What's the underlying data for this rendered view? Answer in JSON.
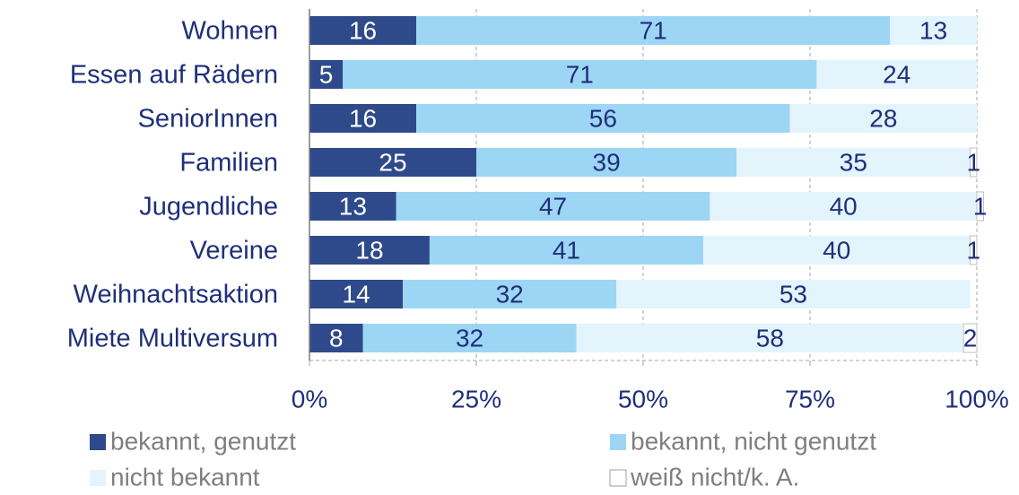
{
  "chart_data": {
    "type": "stacked_barh",
    "categories": [
      "Wohnen",
      "Essen auf Rädern",
      "SeniorInnen",
      "Familien",
      "Jugendliche",
      "Vereine",
      "Weihnachtsaktion",
      "Miete Multiversum"
    ],
    "series": [
      {
        "name": "bekannt, genutzt",
        "color": "#2e4a8a",
        "values": [
          16,
          5,
          16,
          25,
          13,
          18,
          14,
          8
        ]
      },
      {
        "name": "bekannt, nicht genutzt",
        "color": "#9dd6f5",
        "values": [
          71,
          71,
          56,
          39,
          47,
          41,
          32,
          32
        ]
      },
      {
        "name": "nicht bekannt",
        "color": "#e3f4fc",
        "values": [
          13,
          24,
          28,
          35,
          40,
          40,
          53,
          58
        ]
      },
      {
        "name": "weiß nicht/k. A.",
        "color": "#ffffff",
        "values": [
          0,
          0,
          0,
          1,
          1,
          1,
          0,
          2
        ]
      }
    ],
    "xlim": [
      0,
      100
    ],
    "xticks": [
      {
        "value": 0,
        "label": "0%"
      },
      {
        "value": 25,
        "label": "25%"
      },
      {
        "value": 50,
        "label": "50%"
      },
      {
        "value": 75,
        "label": "75%"
      },
      {
        "value": 100,
        "label": "100%"
      }
    ],
    "grid": true
  }
}
